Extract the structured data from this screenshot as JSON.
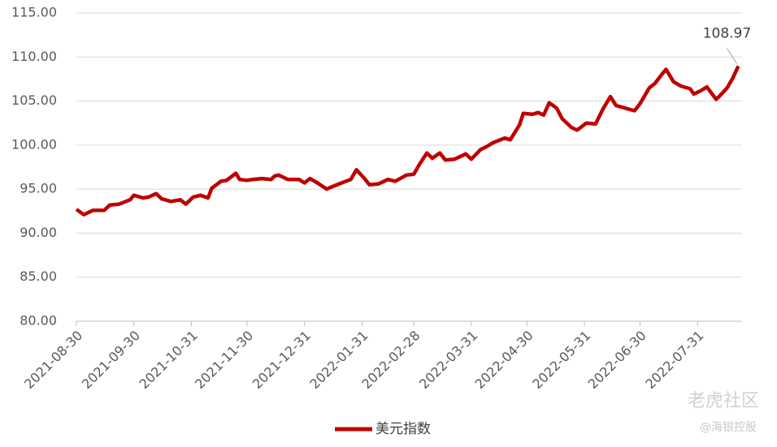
{
  "chart_data": {
    "type": "line",
    "x": [
      "2021-08-30",
      "2021-09-03",
      "2021-09-08",
      "2021-09-14",
      "2021-09-17",
      "2021-09-22",
      "2021-09-28",
      "2021-09-30",
      "2021-10-05",
      "2021-10-08",
      "2021-10-12",
      "2021-10-15",
      "2021-10-20",
      "2021-10-25",
      "2021-10-28",
      "2021-11-01",
      "2021-11-05",
      "2021-11-09",
      "2021-11-11",
      "2021-11-16",
      "2021-11-19",
      "2021-11-24",
      "2021-11-26",
      "2021-11-30",
      "2021-12-03",
      "2021-12-08",
      "2021-12-13",
      "2021-12-15",
      "2021-12-17",
      "2021-12-22",
      "2021-12-28",
      "2021-12-31",
      "2022-01-03",
      "2022-01-07",
      "2022-01-12",
      "2022-01-14",
      "2022-01-20",
      "2022-01-25",
      "2022-01-28",
      "2022-02-01",
      "2022-02-04",
      "2022-02-09",
      "2022-02-14",
      "2022-02-18",
      "2022-02-24",
      "2022-02-28",
      "2022-03-03",
      "2022-03-07",
      "2022-03-10",
      "2022-03-14",
      "2022-03-17",
      "2022-03-22",
      "2022-03-28",
      "2022-03-31",
      "2022-04-05",
      "2022-04-08",
      "2022-04-12",
      "2022-04-18",
      "2022-04-21",
      "2022-04-26",
      "2022-04-28",
      "2022-05-03",
      "2022-05-06",
      "2022-05-09",
      "2022-05-12",
      "2022-05-16",
      "2022-05-19",
      "2022-05-24",
      "2022-05-27",
      "2022-06-01",
      "2022-06-06",
      "2022-06-10",
      "2022-06-14",
      "2022-06-17",
      "2022-06-22",
      "2022-06-27",
      "2022-06-30",
      "2022-07-05",
      "2022-07-08",
      "2022-07-12",
      "2022-07-14",
      "2022-07-18",
      "2022-07-22",
      "2022-07-27",
      "2022-07-29",
      "2022-08-02",
      "2022-08-05",
      "2022-08-10",
      "2022-08-12",
      "2022-08-16",
      "2022-08-19",
      "2022-08-22"
    ],
    "series": [
      {
        "name": "美元指数",
        "color": "#c00000",
        "values": [
          92.7,
          92.1,
          92.6,
          92.6,
          93.2,
          93.3,
          93.8,
          94.3,
          94.0,
          94.1,
          94.5,
          93.9,
          93.6,
          93.8,
          93.3,
          94.1,
          94.3,
          94.0,
          95.1,
          95.9,
          96.0,
          96.8,
          96.1,
          96.0,
          96.1,
          96.2,
          96.1,
          96.5,
          96.6,
          96.1,
          96.1,
          95.7,
          96.2,
          95.7,
          95.0,
          95.2,
          95.7,
          96.1,
          97.2,
          96.3,
          95.5,
          95.6,
          96.1,
          95.9,
          96.6,
          96.7,
          97.8,
          99.1,
          98.5,
          99.1,
          98.3,
          98.4,
          99.0,
          98.4,
          99.5,
          99.8,
          100.3,
          100.8,
          100.6,
          102.3,
          103.6,
          103.5,
          103.7,
          103.4,
          104.8,
          104.2,
          103.0,
          102.0,
          101.7,
          102.5,
          102.4,
          104.1,
          105.5,
          104.5,
          104.2,
          103.9,
          104.7,
          106.5,
          107.0,
          108.1,
          108.6,
          107.2,
          106.7,
          106.4,
          105.8,
          106.2,
          106.6,
          105.2,
          105.6,
          106.5,
          107.6,
          108.97
        ]
      }
    ],
    "xlim": [
      "2021-08-30",
      "2022-08-24"
    ],
    "xticks": [
      "2021-08-30",
      "2021-09-30",
      "2021-10-31",
      "2021-11-30",
      "2021-12-31",
      "2022-01-31",
      "2022-02-28",
      "2022-03-31",
      "2022-04-30",
      "2022-05-31",
      "2022-06-30",
      "2022-07-31"
    ],
    "ylim": [
      80,
      115
    ],
    "yticks": [
      {
        "value": 80,
        "label": "80.00"
      },
      {
        "value": 85,
        "label": "85.00"
      },
      {
        "value": 90,
        "label": "90.00"
      },
      {
        "value": 95,
        "label": "95.00"
      },
      {
        "value": 100,
        "label": "100.00"
      },
      {
        "value": 105,
        "label": "105.00"
      },
      {
        "value": 110,
        "label": "110.00"
      },
      {
        "value": 115,
        "label": "115.00"
      }
    ],
    "grid": true,
    "legend": "bottom",
    "watermark": [
      "老虎社区",
      "@海银控股"
    ]
  }
}
